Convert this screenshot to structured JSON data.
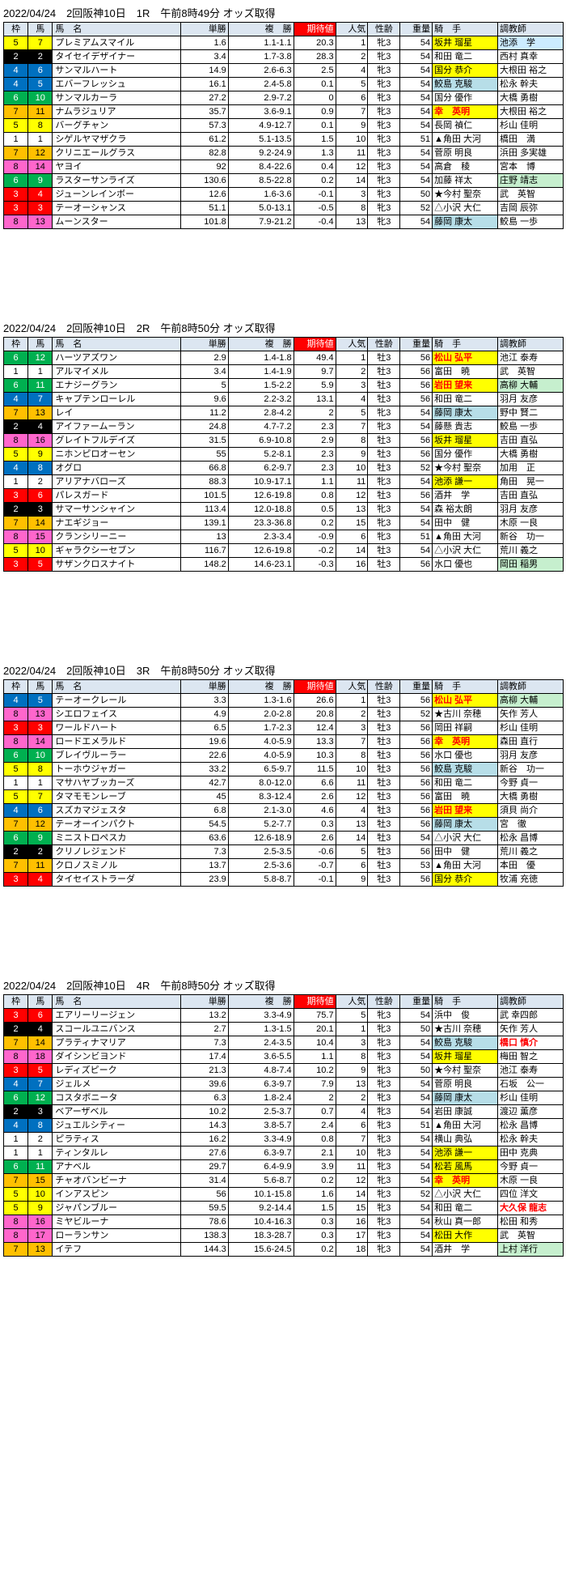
{
  "cols": [
    "枠",
    "馬",
    "馬　名",
    "単勝",
    "複　勝",
    "期待値",
    "人気",
    "性齢",
    "重量",
    "騎　手",
    "調教師"
  ],
  "races": [
    {
      "title": "2022/04/24　2回阪神10日　1R　午前8時49分 オッズ取得",
      "rows": [
        {
          "w": 5,
          "u": 7,
          "n": "プレミアムスマイル",
          "t": "1.6",
          "f": "1.1-1.1",
          "e": "20.3",
          "p": 1,
          "s": "牝3",
          "wt": 54,
          "j": "坂井 瑠星",
          "jh": "hl-yellow",
          "tr": "池添　学",
          "trh": "hl-lightblue"
        },
        {
          "w": 2,
          "u": 2,
          "n": "タイセイデザイナー",
          "t": "3.4",
          "f": "1.7-3.8",
          "e": "28.3",
          "p": 2,
          "s": "牝3",
          "wt": 54,
          "j": "和田 竜二",
          "tr": "西村 真幸"
        },
        {
          "w": 4,
          "u": 6,
          "n": "サンマルハート",
          "t": "14.9",
          "f": "2.6-6.3",
          "e": "2.5",
          "p": 4,
          "s": "牝3",
          "wt": 54,
          "j": "国分 恭介",
          "jh": "hl-yellow",
          "tr": "大根田 裕之"
        },
        {
          "w": 4,
          "u": 5,
          "n": "エバーフレッシュ",
          "t": "16.1",
          "f": "2.4-5.8",
          "e": "0.1",
          "p": 5,
          "s": "牝3",
          "wt": 54,
          "j": "鮫島 克駿",
          "jh": "hl-blue",
          "tr": "松永 幹夫"
        },
        {
          "w": 6,
          "u": 10,
          "n": "サンマルカーラ",
          "t": "27.2",
          "f": "2.9-7.2",
          "e": "0",
          "p": 6,
          "s": "牝3",
          "wt": 54,
          "j": "国分 優作",
          "tr": "大橋 勇樹"
        },
        {
          "w": 7,
          "u": 11,
          "n": "ナムラジュリア",
          "t": "35.7",
          "f": "3.6-9.1",
          "e": "0.9",
          "p": 7,
          "s": "牝3",
          "wt": 54,
          "j": "幸　英明",
          "jh": "hl-yellow hl-red",
          "tr": "大根田 裕之"
        },
        {
          "w": 5,
          "u": 8,
          "n": "バーグチャン",
          "t": "57.3",
          "f": "4.9-12.7",
          "e": "0.1",
          "p": 9,
          "s": "牝3",
          "wt": 54,
          "j": "長岡 禎仁",
          "tr": "杉山 佳明"
        },
        {
          "w": 1,
          "u": 1,
          "n": "シゲルヤマザクラ",
          "t": "61.2",
          "f": "5.1-13.5",
          "e": "1.5",
          "p": 10,
          "s": "牝3",
          "wt": 51,
          "j": "▲角田 大河",
          "tr": "橋田　満"
        },
        {
          "w": 7,
          "u": 12,
          "n": "クリニエールグラス",
          "t": "82.8",
          "f": "9.2-24.9",
          "e": "1.3",
          "p": 11,
          "s": "牝3",
          "wt": 54,
          "j": "菅原 明良",
          "tr": "浜田 多実雄"
        },
        {
          "w": 8,
          "u": 14,
          "n": "ヤヨイ",
          "t": "92",
          "f": "8.4-22.6",
          "e": "0.4",
          "p": 12,
          "s": "牝3",
          "wt": 54,
          "j": "高倉　稜",
          "tr": "宮本　博"
        },
        {
          "w": 6,
          "u": 9,
          "n": "ラスターサンライズ",
          "t": "130.6",
          "f": "8.5-22.8",
          "e": "0.2",
          "p": 14,
          "s": "牝3",
          "wt": 54,
          "j": "加藤 祥太",
          "tr": "庄野 靖志",
          "trh": "hl-green"
        },
        {
          "w": 3,
          "u": 4,
          "n": "ジューンレインボー",
          "t": "12.6",
          "f": "1.6-3.6",
          "e": "-0.1",
          "p": 3,
          "s": "牝3",
          "wt": 50,
          "j": "★今村 聖奈",
          "tr": "武　英智"
        },
        {
          "w": 3,
          "u": 3,
          "n": "テーオーシャンス",
          "t": "51.1",
          "f": "5.0-13.1",
          "e": "-0.5",
          "p": 8,
          "s": "牝3",
          "wt": 52,
          "j": "△小沢 大仁",
          "tr": "吉岡 辰弥"
        },
        {
          "w": 8,
          "u": 13,
          "n": "ムーンスター",
          "t": "101.8",
          "f": "7.9-21.2",
          "e": "-0.4",
          "p": 13,
          "s": "牝3",
          "wt": 54,
          "j": "藤岡 康太",
          "jh": "hl-blue",
          "tr": "鮫島 一歩"
        }
      ]
    },
    {
      "title": "2022/04/24　2回阪神10日　2R　午前8時50分 オッズ取得",
      "rows": [
        {
          "w": 6,
          "u": 12,
          "n": "ハーツアズワン",
          "t": "2.9",
          "f": "1.4-1.8",
          "e": "49.4",
          "p": 1,
          "s": "牡3",
          "wt": 56,
          "j": "松山 弘平",
          "jh": "hl-yellow hl-red",
          "tr": "池江 泰寿"
        },
        {
          "w": 1,
          "u": 1,
          "n": "アルマイメル",
          "t": "3.4",
          "f": "1.4-1.9",
          "e": "9.7",
          "p": 2,
          "s": "牡3",
          "wt": 56,
          "j": "富田　暁",
          "tr": "武　英智"
        },
        {
          "w": 6,
          "u": 11,
          "n": "エナジーグラン",
          "t": "5",
          "f": "1.5-2.2",
          "e": "5.9",
          "p": 3,
          "s": "牡3",
          "wt": 56,
          "j": "岩田 望来",
          "jh": "hl-yellow hl-red",
          "tr": "高柳 大輔",
          "trh": "hl-green"
        },
        {
          "w": 4,
          "u": 7,
          "n": "キャプテンローレル",
          "t": "9.6",
          "f": "2.2-3.2",
          "e": "13.1",
          "p": 4,
          "s": "牡3",
          "wt": 56,
          "j": "和田 竜二",
          "tr": "羽月 友彦"
        },
        {
          "w": 7,
          "u": 13,
          "n": "レイ",
          "t": "11.2",
          "f": "2.8-4.2",
          "e": "2",
          "p": 5,
          "s": "牝3",
          "wt": 54,
          "j": "藤岡 康太",
          "jh": "hl-blue",
          "tr": "野中 賢二"
        },
        {
          "w": 2,
          "u": 4,
          "n": "アイファームーラン",
          "t": "24.8",
          "f": "4.7-7.2",
          "e": "2.3",
          "p": 7,
          "s": "牝3",
          "wt": 54,
          "j": "藤懸 貴志",
          "tr": "鮫島 一歩"
        },
        {
          "w": 8,
          "u": 16,
          "n": "グレイトフルデイズ",
          "t": "31.5",
          "f": "6.9-10.8",
          "e": "2.9",
          "p": 8,
          "s": "牡3",
          "wt": 56,
          "j": "坂井 瑠星",
          "jh": "hl-yellow",
          "tr": "吉田 直弘"
        },
        {
          "w": 5,
          "u": 9,
          "n": "ニホンピロオーセン",
          "t": "55",
          "f": "5.2-8.1",
          "e": "2.3",
          "p": 9,
          "s": "牡3",
          "wt": 56,
          "j": "国分 優作",
          "tr": "大橋 勇樹"
        },
        {
          "w": 4,
          "u": 8,
          "n": "オグロ",
          "t": "66.8",
          "f": "6.2-9.7",
          "e": "2.3",
          "p": 10,
          "s": "牡3",
          "wt": 52,
          "j": "★今村 聖奈",
          "tr": "加用　正"
        },
        {
          "w": 1,
          "u": 2,
          "n": "アリアナバローズ",
          "t": "88.3",
          "f": "10.9-17.1",
          "e": "1.1",
          "p": 11,
          "s": "牝3",
          "wt": 54,
          "j": "池添 謙一",
          "jh": "hl-yellow",
          "tr": "角田　晃一"
        },
        {
          "w": 3,
          "u": 6,
          "n": "パレスガード",
          "t": "101.5",
          "f": "12.6-19.8",
          "e": "0.8",
          "p": 12,
          "s": "牡3",
          "wt": 56,
          "j": "酒井　学",
          "tr": "吉田 直弘"
        },
        {
          "w": 2,
          "u": 3,
          "n": "サマーサンシャイン",
          "t": "113.4",
          "f": "12.0-18.8",
          "e": "0.5",
          "p": 13,
          "s": "牝3",
          "wt": 54,
          "j": "森 裕太朗",
          "tr": "羽月 友彦"
        },
        {
          "w": 7,
          "u": 14,
          "n": "ナエギジョー",
          "t": "139.1",
          "f": "23.3-36.8",
          "e": "0.2",
          "p": 15,
          "s": "牝3",
          "wt": 54,
          "j": "田中　健",
          "tr": "木原 一良"
        },
        {
          "w": 8,
          "u": 15,
          "n": "クランシリーニー",
          "t": "13",
          "f": "2.3-3.4",
          "e": "-0.9",
          "p": 6,
          "s": "牝3",
          "wt": 51,
          "j": "▲角田 大河",
          "tr": "新谷　功一"
        },
        {
          "w": 5,
          "u": 10,
          "n": "ギャラクシーセブン",
          "t": "116.7",
          "f": "12.6-19.8",
          "e": "-0.2",
          "p": 14,
          "s": "牡3",
          "wt": 54,
          "j": "△小沢 大仁",
          "tr": "荒川 義之"
        },
        {
          "w": 3,
          "u": 5,
          "n": "サザンクロスナイト",
          "t": "148.2",
          "f": "14.6-23.1",
          "e": "-0.3",
          "p": 16,
          "s": "牡3",
          "wt": 56,
          "j": "水口 優也",
          "tr": "岡田 稲男",
          "trh": "hl-green"
        }
      ]
    },
    {
      "title": "2022/04/24　2回阪神10日　3R　午前8時50分 オッズ取得",
      "rows": [
        {
          "w": 4,
          "u": 5,
          "n": "テーオークレール",
          "t": "3.3",
          "f": "1.3-1.6",
          "e": "26.6",
          "p": 1,
          "s": "牡3",
          "wt": 56,
          "j": "松山 弘平",
          "jh": "hl-yellow hl-red",
          "tr": "高柳 大輔",
          "trh": "hl-green"
        },
        {
          "w": 8,
          "u": 13,
          "n": "シエロフェイス",
          "t": "4.9",
          "f": "2.0-2.8",
          "e": "20.8",
          "p": 2,
          "s": "牡3",
          "wt": 52,
          "j": "★古川 奈穂",
          "tr": "矢作 芳人"
        },
        {
          "w": 3,
          "u": 3,
          "n": "ワールドハート",
          "t": "6.5",
          "f": "1.7-2.3",
          "e": "12.4",
          "p": 3,
          "s": "牡3",
          "wt": 56,
          "j": "岡田 祥嗣",
          "tr": "杉山 佳明"
        },
        {
          "w": 8,
          "u": 14,
          "n": "ロードエメラルド",
          "t": "19.6",
          "f": "4.0-5.9",
          "e": "13.3",
          "p": 7,
          "s": "牡3",
          "wt": 56,
          "j": "幸　英明",
          "jh": "hl-yellow hl-red",
          "tr": "森田 直行"
        },
        {
          "w": 6,
          "u": 10,
          "n": "ブレイヴルーラー",
          "t": "22.6",
          "f": "4.0-5.9",
          "e": "10.3",
          "p": 8,
          "s": "牡3",
          "wt": 56,
          "j": "水口 優也",
          "tr": "羽月 友彦"
        },
        {
          "w": 5,
          "u": 8,
          "n": "トーホウジャガー",
          "t": "33.2",
          "f": "6.5-9.7",
          "e": "11.5",
          "p": 10,
          "s": "牡3",
          "wt": 56,
          "j": "鮫島 克駿",
          "jh": "hl-blue",
          "tr": "新谷　功一"
        },
        {
          "w": 1,
          "u": 1,
          "n": "マサハヤブッカーズ",
          "t": "42.7",
          "f": "8.0-12.0",
          "e": "6.6",
          "p": 11,
          "s": "牡3",
          "wt": 56,
          "j": "和田 竜二",
          "tr": "今野 貞一"
        },
        {
          "w": 5,
          "u": 7,
          "n": "タマモモンレーブ",
          "t": "45",
          "f": "8.3-12.4",
          "e": "2.6",
          "p": 12,
          "s": "牡3",
          "wt": 56,
          "j": "富田　暁",
          "tr": "大橋 勇樹"
        },
        {
          "w": 4,
          "u": 6,
          "n": "スズカマジェスタ",
          "t": "6.8",
          "f": "2.1-3.0",
          "e": "4.6",
          "p": 4,
          "s": "牡3",
          "wt": 56,
          "j": "岩田 望来",
          "jh": "hl-yellow hl-red",
          "tr": "須貝 尚介"
        },
        {
          "w": 7,
          "u": 12,
          "n": "テーオーインパクト",
          "t": "54.5",
          "f": "5.2-7.7",
          "e": "0.3",
          "p": 13,
          "s": "牡3",
          "wt": 56,
          "j": "藤岡 康太",
          "jh": "hl-blue",
          "tr": "宮　徹"
        },
        {
          "w": 6,
          "u": 9,
          "n": "ミニストロペスカ",
          "t": "63.6",
          "f": "12.6-18.9",
          "e": "2.6",
          "p": 14,
          "s": "牡3",
          "wt": 54,
          "j": "△小沢 大仁",
          "tr": "松永 昌博"
        },
        {
          "w": 2,
          "u": 2,
          "n": "クリノレジェンド",
          "t": "7.3",
          "f": "2.5-3.5",
          "e": "-0.6",
          "p": 5,
          "s": "牡3",
          "wt": 56,
          "j": "田中　健",
          "tr": "荒川 義之"
        },
        {
          "w": 7,
          "u": 11,
          "n": "クロノスミノル",
          "t": "13.7",
          "f": "2.5-3.6",
          "e": "-0.7",
          "p": 6,
          "s": "牡3",
          "wt": 53,
          "j": "▲角田 大河",
          "tr": "本田　優"
        },
        {
          "w": 3,
          "u": 4,
          "n": "タイセイストラーダ",
          "t": "23.9",
          "f": "5.8-8.7",
          "e": "-0.1",
          "p": 9,
          "s": "牡3",
          "wt": 56,
          "j": "国分 恭介",
          "jh": "hl-yellow",
          "tr": "牧浦 充徳"
        }
      ]
    },
    {
      "title": "2022/04/24　2回阪神10日　4R　午前8時50分 オッズ取得",
      "rows": [
        {
          "w": 3,
          "u": 6,
          "n": "エアリーリージェン",
          "t": "13.2",
          "f": "3.3-4.9",
          "e": "75.7",
          "p": 5,
          "s": "牝3",
          "wt": 54,
          "j": "浜中　俊",
          "tr": "武 幸四郎"
        },
        {
          "w": 2,
          "u": 4,
          "n": "スコールユニバンス",
          "t": "2.7",
          "f": "1.3-1.5",
          "e": "20.1",
          "p": 1,
          "s": "牝3",
          "wt": 50,
          "j": "★古川 奈穂",
          "tr": "矢作 芳人"
        },
        {
          "w": 7,
          "u": 14,
          "n": "プラティナマリア",
          "t": "7.3",
          "f": "2.4-3.5",
          "e": "10.4",
          "p": 3,
          "s": "牝3",
          "wt": 54,
          "j": "鮫島 克駿",
          "jh": "hl-blue",
          "tr": "橋口 慎介",
          "trh": "hl-red"
        },
        {
          "w": 8,
          "u": 18,
          "n": "ダイシンビヨンド",
          "t": "17.4",
          "f": "3.6-5.5",
          "e": "1.1",
          "p": 8,
          "s": "牝3",
          "wt": 54,
          "j": "坂井 瑠星",
          "jh": "hl-yellow",
          "tr": "梅田 智之"
        },
        {
          "w": 3,
          "u": 5,
          "n": "レディズピーク",
          "t": "21.3",
          "f": "4.8-7.4",
          "e": "10.2",
          "p": 9,
          "s": "牝3",
          "wt": 50,
          "j": "★今村 聖奈",
          "tr": "池江 泰寿"
        },
        {
          "w": 4,
          "u": 7,
          "n": "ジェルメ",
          "t": "39.6",
          "f": "6.3-9.7",
          "e": "7.9",
          "p": 13,
          "s": "牝3",
          "wt": 54,
          "j": "菅原 明良",
          "tr": "石坂　公一"
        },
        {
          "w": 6,
          "u": 12,
          "n": "コスタボニータ",
          "t": "6.3",
          "f": "1.8-2.4",
          "e": "2",
          "p": 2,
          "s": "牝3",
          "wt": 54,
          "j": "藤岡 康太",
          "jh": "hl-blue",
          "tr": "杉山 佳明"
        },
        {
          "w": 2,
          "u": 3,
          "n": "ベアーザベル",
          "t": "10.2",
          "f": "2.5-3.7",
          "e": "0.7",
          "p": 4,
          "s": "牝3",
          "wt": 54,
          "j": "岩田 康誠",
          "tr": "渡辺 薫彦"
        },
        {
          "w": 4,
          "u": 8,
          "n": "ジュエルシティー",
          "t": "14.3",
          "f": "3.8-5.7",
          "e": "2.4",
          "p": 6,
          "s": "牝3",
          "wt": 51,
          "j": "▲角田 大河",
          "tr": "松永 昌博"
        },
        {
          "w": 1,
          "u": 2,
          "n": "ピラティス",
          "t": "16.2",
          "f": "3.3-4.9",
          "e": "0.8",
          "p": 7,
          "s": "牝3",
          "wt": 54,
          "j": "横山 典弘",
          "tr": "松永 幹夫"
        },
        {
          "w": 1,
          "u": 1,
          "n": "ティンタルレ",
          "t": "27.6",
          "f": "6.3-9.7",
          "e": "2.1",
          "p": 10,
          "s": "牝3",
          "wt": 54,
          "j": "池添 謙一",
          "jh": "hl-yellow",
          "tr": "田中 克典"
        },
        {
          "w": 6,
          "u": 11,
          "n": "アナベル",
          "t": "29.7",
          "f": "6.4-9.9",
          "e": "3.9",
          "p": 11,
          "s": "牝3",
          "wt": 54,
          "j": "松若 風馬",
          "jh": "hl-yellow",
          "tr": "今野 貞一"
        },
        {
          "w": 7,
          "u": 15,
          "n": "チャオバンビーナ",
          "t": "31.4",
          "f": "5.6-8.7",
          "e": "0.2",
          "p": 12,
          "s": "牝3",
          "wt": 54,
          "j": "幸　英明",
          "jh": "hl-yellow hl-red",
          "tr": "木原 一良"
        },
        {
          "w": 5,
          "u": 10,
          "n": "インアスピン",
          "t": "56",
          "f": "10.1-15.8",
          "e": "1.6",
          "p": 14,
          "s": "牝3",
          "wt": 52,
          "j": "△小沢 大仁",
          "tr": "四位 洋文"
        },
        {
          "w": 5,
          "u": 9,
          "n": "ジャパンブルー",
          "t": "59.5",
          "f": "9.2-14.4",
          "e": "1.5",
          "p": 15,
          "s": "牝3",
          "wt": 54,
          "j": "和田 竜二",
          "tr": "大久保 龍志",
          "trh": "hl-red"
        },
        {
          "w": 8,
          "u": 16,
          "n": "ミヤビルーナ",
          "t": "78.6",
          "f": "10.4-16.3",
          "e": "0.3",
          "p": 16,
          "s": "牝3",
          "wt": 54,
          "j": "秋山 真一郎",
          "tr": "松田 和秀"
        },
        {
          "w": 8,
          "u": 17,
          "n": "ローランサン",
          "t": "138.3",
          "f": "18.3-28.7",
          "e": "0.3",
          "p": 17,
          "s": "牝3",
          "wt": 54,
          "j": "松田 大作",
          "jh": "hl-yellow",
          "tr": "武　英智"
        },
        {
          "w": 7,
          "u": 13,
          "n": "イテフ",
          "t": "144.3",
          "f": "15.6-24.5",
          "e": "0.2",
          "p": 18,
          "s": "牝3",
          "wt": 54,
          "j": "酒井　学",
          "tr": "上村 洋行",
          "trh": "hl-green"
        }
      ]
    }
  ]
}
